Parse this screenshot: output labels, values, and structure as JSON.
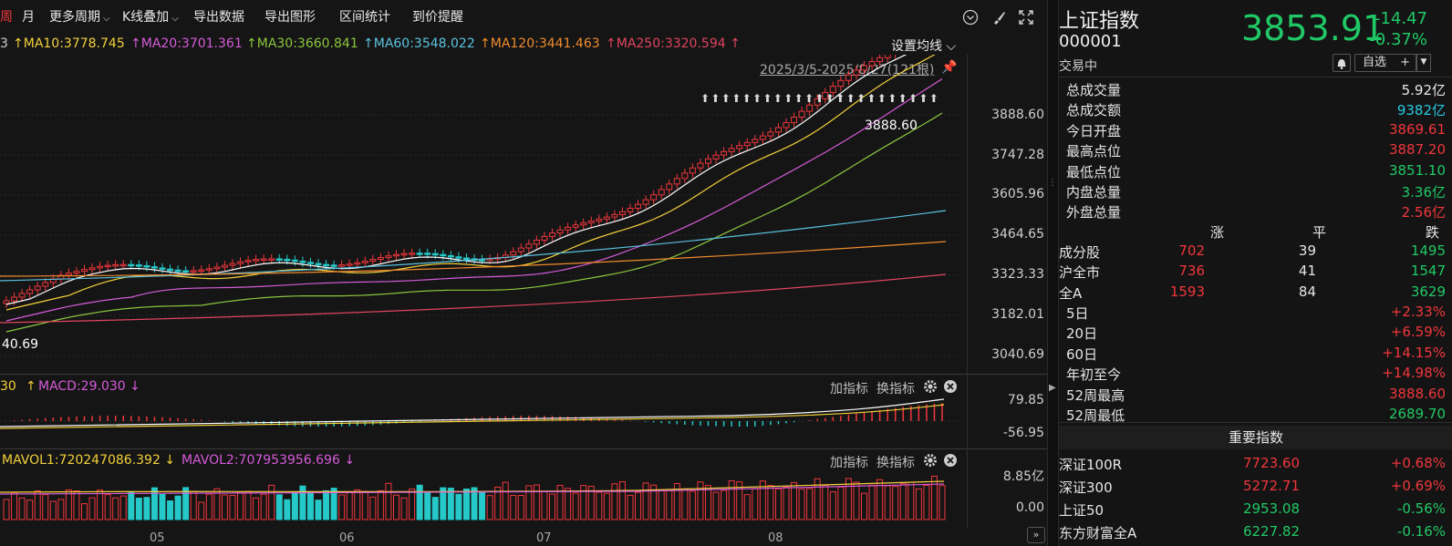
{
  "toolbar": {
    "period_cut": "周",
    "month": "月",
    "more_periods": "更多周期",
    "kline_overlay": "K线叠加",
    "export_data": "导出数据",
    "export_chart": "导出图形",
    "interval_stats": "区间统计",
    "price_alert": "到价提醒"
  },
  "ma_bar": {
    "lead": "3",
    "ma10": "MA10:3778.745",
    "ma20": "MA20:3701.361",
    "ma30": "MA30:3660.841",
    "ma60": "MA60:3548.022",
    "ma120": "MA120:3441.463",
    "ma250": "MA250:3320.594",
    "settings": "设置均线"
  },
  "range_label": "2025/3/5-2025/8/27(121根)",
  "price_axis": [
    "3888.60",
    "3747.28",
    "3605.96",
    "3464.65",
    "3323.33",
    "3182.01",
    "3040.69"
  ],
  "high_marker": "3888.60",
  "low_marker": "40.69",
  "macd": {
    "lead": "30",
    "label": "MACD:29.030",
    "add_indicator": "加指标",
    "switch_indicator": "换指标",
    "axis_top": "79.85",
    "axis_bottom": "-56.95"
  },
  "volume": {
    "mavol1": "MAVOL1:720247086.392",
    "mavol2": "MAVOL2:707953956.696",
    "add_indicator": "加指标",
    "switch_indicator": "换指标",
    "axis_top": "8.85亿",
    "axis_bottom": "0.00"
  },
  "months": [
    "05",
    "06",
    "07",
    "08"
  ],
  "quote": {
    "name": "上证指数",
    "code": "000001",
    "status": "交易中",
    "price": "3853.91",
    "change": "-14.47",
    "change_pct": "-0.37%",
    "watchlist": "自选",
    "watch_plus": "+"
  },
  "stats": [
    {
      "label": "总成交量",
      "value": "5.92亿",
      "color": "white"
    },
    {
      "label": "总成交额",
      "value": "9382亿",
      "color": "cyan"
    },
    {
      "label": "今日开盘",
      "value": "3869.61",
      "color": "red"
    },
    {
      "label": "最高点位",
      "value": "3887.20",
      "color": "red"
    },
    {
      "label": "最低点位",
      "value": "3851.10",
      "color": "green"
    },
    {
      "label": "内盘总量",
      "value": "3.36亿",
      "color": "green"
    },
    {
      "label": "外盘总量",
      "value": "2.56亿",
      "color": "red"
    }
  ],
  "breadth_header": {
    "up": "涨",
    "flat": "平",
    "down": "跌"
  },
  "breadth": [
    {
      "label": "成分股",
      "up": "702",
      "flat": "39",
      "down": "1495"
    },
    {
      "label": "沪全市",
      "up": "736",
      "flat": "41",
      "down": "1547"
    },
    {
      "label": "全A",
      "up": "1593",
      "flat": "84",
      "down": "3629"
    }
  ],
  "performance": [
    {
      "label": "5日",
      "value": "+2.33%"
    },
    {
      "label": "20日",
      "value": "+6.59%"
    },
    {
      "label": "60日",
      "value": "+14.15%"
    },
    {
      "label": "年初至今",
      "value": "+14.98%"
    },
    {
      "label": "52周最高",
      "value": "3888.60"
    },
    {
      "label": "52周最低",
      "value": "2689.70"
    }
  ],
  "important_title": "重要指数",
  "indices": [
    {
      "name": "深证100R",
      "price": "7723.60",
      "pct": "+0.68%",
      "color": "red"
    },
    {
      "name": "深证300",
      "price": "5272.71",
      "pct": "+0.69%",
      "color": "red"
    },
    {
      "name": "上证50",
      "price": "2953.08",
      "pct": "-0.56%",
      "color": "green"
    },
    {
      "name": "东方财富全A",
      "price": "6227.82",
      "pct": "-0.16%",
      "color": "green"
    }
  ],
  "colors": {
    "up": "#f0363c",
    "down": "#25c9c9",
    "ma5": "#ffffff",
    "ma10": "#f3d03a",
    "ma20": "#d65bd9",
    "ma30": "#8cc63e",
    "ma60": "#5bc3e0",
    "ma120": "#f08c2e",
    "ma250": "#e0455e"
  }
}
